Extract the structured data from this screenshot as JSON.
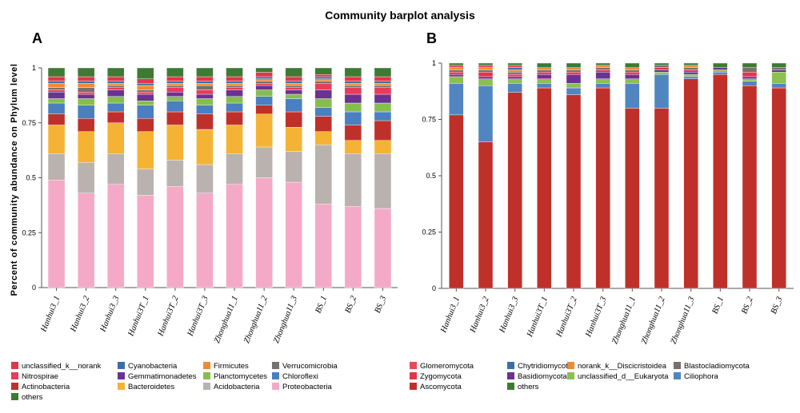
{
  "title": "Community barplot analysis",
  "ylabel": "Percent of community abundance on Phylum level",
  "chart_data": [
    {
      "panel": "A",
      "type": "bar",
      "stacked": true,
      "ylim": [
        0,
        1
      ],
      "yticks": [
        "0",
        "0.25",
        "0.5",
        "0.75",
        "1"
      ],
      "categories": [
        "Hanhui3_1",
        "Hanhui3_2",
        "Hanhui3_3",
        "Hanhui3T_1",
        "Hanhui3T_2",
        "Hanhui3T_3",
        "Zhonghua11_1",
        "Zhonghua11_2",
        "Zhonghua11_3",
        "BS_1",
        "BS_2",
        "BS_3"
      ],
      "series": [
        {
          "name": "Proteobacteria",
          "color": "#f4aac6",
          "values": [
            0.49,
            0.43,
            0.47,
            0.42,
            0.46,
            0.43,
            0.47,
            0.5,
            0.48,
            0.38,
            0.37,
            0.36
          ]
        },
        {
          "name": "Acidobacteria",
          "color": "#b9b2ae",
          "values": [
            0.12,
            0.14,
            0.14,
            0.12,
            0.12,
            0.13,
            0.14,
            0.14,
            0.14,
            0.27,
            0.24,
            0.25
          ]
        },
        {
          "name": "Bacteroidetes",
          "color": "#f5b335",
          "values": [
            0.13,
            0.14,
            0.14,
            0.17,
            0.16,
            0.16,
            0.13,
            0.15,
            0.11,
            0.06,
            0.06,
            0.06
          ]
        },
        {
          "name": "Actinobacteria",
          "color": "#c0302a",
          "values": [
            0.05,
            0.06,
            0.05,
            0.06,
            0.06,
            0.07,
            0.06,
            0.04,
            0.07,
            0.07,
            0.07,
            0.09
          ]
        },
        {
          "name": "Chloroflexi",
          "color": "#4a7fc0",
          "values": [
            0.05,
            0.06,
            0.04,
            0.06,
            0.05,
            0.04,
            0.04,
            0.04,
            0.06,
            0.04,
            0.06,
            0.04
          ]
        },
        {
          "name": "Planctomycetes",
          "color": "#86be4e",
          "values": [
            0.02,
            0.03,
            0.03,
            0.02,
            0.02,
            0.03,
            0.03,
            0.03,
            0.02,
            0.04,
            0.04,
            0.04
          ]
        },
        {
          "name": "Gemmatimonadetes",
          "color": "#6a3292",
          "values": [
            0.03,
            0.02,
            0.03,
            0.03,
            0.02,
            0.02,
            0.03,
            0.02,
            0.02,
            0.04,
            0.04,
            0.04
          ]
        },
        {
          "name": "Nitrospirae",
          "color": "#e83c5a",
          "values": [
            0.01,
            0.01,
            0.01,
            0.01,
            0.02,
            0.02,
            0.01,
            0.01,
            0.01,
            0.03,
            0.03,
            0.03
          ]
        },
        {
          "name": "Verrucomicrobia",
          "color": "#76706e",
          "values": [
            0.01,
            0.02,
            0.01,
            0.01,
            0.01,
            0.02,
            0.01,
            0.01,
            0.01,
            0.01,
            0.01,
            0.01
          ]
        },
        {
          "name": "Firmicutes",
          "color": "#ef8a34",
          "values": [
            0.02,
            0.02,
            0.01,
            0.02,
            0.01,
            0.01,
            0.01,
            0.01,
            0.01,
            0.01,
            0.01,
            0.01
          ]
        },
        {
          "name": "Cyanobacteria",
          "color": "#3a6ea8",
          "values": [
            0.01,
            0.01,
            0.01,
            0.01,
            0.01,
            0.01,
            0.01,
            0.01,
            0.01,
            0.01,
            0.01,
            0.01
          ]
        },
        {
          "name": "unclassified_k__norank",
          "color": "#e0364a",
          "values": [
            0.02,
            0.02,
            0.02,
            0.02,
            0.02,
            0.02,
            0.02,
            0.02,
            0.02,
            0.01,
            0.02,
            0.02
          ]
        },
        {
          "name": "others",
          "color": "#3d7a34",
          "values": [
            0.04,
            0.04,
            0.04,
            0.05,
            0.04,
            0.04,
            0.04,
            0.02,
            0.04,
            0.03,
            0.04,
            0.04
          ]
        }
      ],
      "legend": [
        "unclassified_k__norank",
        "Cyanobacteria",
        "Firmicutes",
        "Verrucomicrobia",
        "Nitrospirae",
        "Gemmatimonadetes",
        "Planctomycetes",
        "Chloroflexi",
        "Actinobacteria",
        "Bacteroidetes",
        "Acidobacteria",
        "Proteobacteria",
        "others"
      ]
    },
    {
      "panel": "B",
      "type": "bar",
      "stacked": true,
      "ylim": [
        0,
        1
      ],
      "yticks": [
        "0",
        "0.25",
        "0.5",
        "0.75",
        "1"
      ],
      "categories": [
        "Hanhui3_1",
        "Hanhui3_2",
        "Hanhui3_3",
        "Hanhui3T_1",
        "Hanhui3T_2",
        "Hanhui3T_3",
        "Zhonghua11_1",
        "Zhonghua11_2",
        "Zhonghua11_3",
        "BS_1",
        "BS_2",
        "BS_3"
      ],
      "series": [
        {
          "name": "Ascomycota",
          "color": "#c0302a",
          "values": [
            0.77,
            0.65,
            0.87,
            0.89,
            0.86,
            0.89,
            0.8,
            0.8,
            0.93,
            0.95,
            0.9,
            0.89
          ]
        },
        {
          "name": "Ciliophora",
          "color": "#5085c0",
          "values": [
            0.14,
            0.25,
            0.04,
            0.02,
            0.03,
            0.02,
            0.11,
            0.15,
            0.01,
            0.01,
            0.02,
            0.02
          ]
        },
        {
          "name": "unclassified_d__Eukaryota",
          "color": "#8cc050",
          "values": [
            0.03,
            0.03,
            0.02,
            0.02,
            0.02,
            0.02,
            0.02,
            0.01,
            0.01,
            0.01,
            0.01,
            0.05
          ]
        },
        {
          "name": "Basidiomycota",
          "color": "#6a3292",
          "values": [
            0.01,
            0.01,
            0.01,
            0.02,
            0.04,
            0.03,
            0.02,
            0.01,
            0.01,
            0.01,
            0.01,
            0.01
          ]
        },
        {
          "name": "Zygomycota",
          "color": "#e0364a",
          "values": [
            0.01,
            0.02,
            0.01,
            0.01,
            0.01,
            0.01,
            0.01,
            0.01,
            0.01,
            0.0,
            0.02,
            0.0
          ]
        },
        {
          "name": "Blastocladiomycota",
          "color": "#76706e",
          "values": [
            0.01,
            0.01,
            0.01,
            0.01,
            0.01,
            0.01,
            0.01,
            0.01,
            0.01,
            0.0,
            0.02,
            0.01
          ]
        },
        {
          "name": "norank_k__Discicristoidea",
          "color": "#ef8a34",
          "values": [
            0.01,
            0.01,
            0.01,
            0.01,
            0.01,
            0.01,
            0.01,
            0.0,
            0.01,
            0.0,
            0.0,
            0.0
          ]
        },
        {
          "name": "Chytridiomycota",
          "color": "#3a6ea8",
          "values": [
            0.0,
            0.0,
            0.01,
            0.0,
            0.0,
            0.0,
            0.0,
            0.0,
            0.0,
            0.0,
            0.0,
            0.0
          ]
        },
        {
          "name": "Glomeromycota",
          "color": "#e8485a",
          "values": [
            0.01,
            0.01,
            0.01,
            0.0,
            0.0,
            0.0,
            0.0,
            0.0,
            0.0,
            0.0,
            0.0,
            0.0
          ]
        },
        {
          "name": "others",
          "color": "#3d7a34",
          "values": [
            0.01,
            0.01,
            0.01,
            0.02,
            0.02,
            0.01,
            0.02,
            0.01,
            0.01,
            0.02,
            0.02,
            0.02
          ]
        }
      ],
      "legend": [
        "Glomeromycota",
        "Chytridiomycota",
        "norank_k__Discicristoidea",
        "Blastocladiomycota",
        "Zygomycota",
        "Basidiomycota",
        "unclassified_d__Eukaryota",
        "Ciliophora",
        "Ascomycota",
        "others"
      ]
    }
  ]
}
